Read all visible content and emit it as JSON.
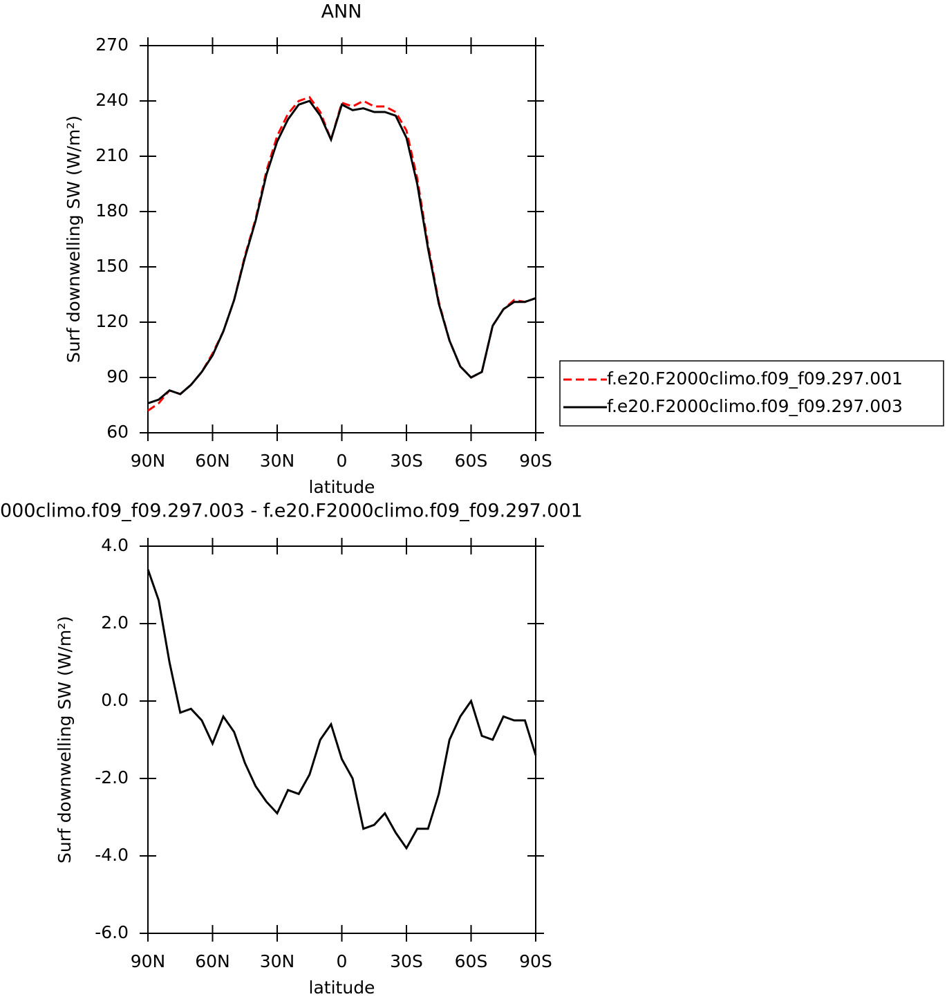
{
  "chart_data": [
    {
      "type": "line",
      "title": "ANN",
      "y_label": "Surf downwelling SW (W/m²)",
      "x_label": "latitude",
      "xlim": [
        90,
        -90
      ],
      "xticks": [
        {
          "value": 90,
          "label": "90N"
        },
        {
          "value": 60,
          "label": "60N"
        },
        {
          "value": 30,
          "label": "30N"
        },
        0,
        {
          "value": -30,
          "label": "30S"
        },
        {
          "value": -60,
          "label": "60S"
        },
        {
          "value": -90,
          "label": "90S"
        }
      ],
      "ylim": [
        60,
        270
      ],
      "yticks": [
        60,
        90,
        120,
        150,
        180,
        210,
        240,
        270
      ],
      "x": [
        90,
        85,
        80,
        75,
        70,
        65,
        60,
        55,
        50,
        45,
        40,
        35,
        30,
        25,
        20,
        15,
        10,
        5,
        0,
        -5,
        -10,
        -15,
        -20,
        -25,
        -30,
        -35,
        -40,
        -45,
        -50,
        -55,
        -60,
        -65,
        -70,
        -75,
        -80,
        -85,
        -90
      ],
      "legend": "right",
      "series": [
        {
          "name": "f.e20.F2000climo.f09_f09.297.001",
          "color": "#ff0000",
          "dashed": true,
          "values": [
            72,
            76,
            83,
            81,
            86,
            93,
            103,
            115,
            132,
            156,
            176,
            202,
            221,
            233,
            240,
            242,
            234,
            219,
            239,
            237,
            240,
            237,
            237,
            234,
            224,
            198,
            162,
            131,
            110,
            96,
            90,
            93,
            118,
            127,
            132,
            131,
            133
          ]
        },
        {
          "name": "f.e20.F2000climo.f09_f09.297.003",
          "color": "#000000",
          "dashed": false,
          "values": [
            76,
            78,
            83,
            81,
            86,
            93,
            102,
            115,
            132,
            155,
            175,
            200,
            218,
            230,
            238,
            240,
            232,
            219,
            238,
            235,
            236,
            234,
            234,
            232,
            220,
            195,
            160,
            130,
            110,
            96,
            90,
            93,
            118,
            127,
            131,
            131,
            133
          ]
        }
      ]
    },
    {
      "type": "line",
      "title": "000climo.f09_f09.297.003 - f.e20.F2000climo.f09_f09.297.001",
      "y_label": "Surf downwelling SW (W/m²)",
      "x_label": "latitude",
      "xlim": [
        90,
        -90
      ],
      "xticks": [
        {
          "value": 90,
          "label": "90N"
        },
        {
          "value": 60,
          "label": "60N"
        },
        {
          "value": 30,
          "label": "30N"
        },
        0,
        {
          "value": -30,
          "label": "30S"
        },
        {
          "value": -60,
          "label": "60S"
        },
        {
          "value": -90,
          "label": "90S"
        }
      ],
      "ylim": [
        -6,
        4
      ],
      "yticks": [
        {
          "value": -6,
          "label": "-6.0"
        },
        {
          "value": -4,
          "label": "-4.0"
        },
        {
          "value": -2,
          "label": "-2.0"
        },
        {
          "value": 0,
          "label": "0.0"
        },
        {
          "value": 2,
          "label": "2.0"
        },
        {
          "value": 4,
          "label": "4.0"
        }
      ],
      "x": [
        90,
        85,
        80,
        75,
        70,
        65,
        60,
        55,
        50,
        45,
        40,
        35,
        30,
        25,
        20,
        15,
        10,
        5,
        0,
        -5,
        -10,
        -15,
        -20,
        -25,
        -30,
        -35,
        -40,
        -45,
        -50,
        -55,
        -60,
        -65,
        -70,
        -75,
        -80,
        -85,
        -90
      ],
      "series": [
        {
          "color": "#000000",
          "dashed": false,
          "values": [
            3.4,
            2.6,
            1.0,
            -0.3,
            -0.2,
            -0.5,
            -1.1,
            -0.4,
            -0.8,
            -1.6,
            -2.2,
            -2.6,
            -2.9,
            -2.3,
            -2.4,
            -1.9,
            -1.0,
            -0.6,
            -1.5,
            -2.0,
            -3.3,
            -3.2,
            -2.9,
            -3.4,
            -3.8,
            -3.3,
            -3.3,
            -2.4,
            -1.0,
            -0.4,
            0.0,
            -0.9,
            -1.0,
            -0.4,
            -0.5,
            -0.5,
            -1.4
          ]
        }
      ]
    }
  ]
}
